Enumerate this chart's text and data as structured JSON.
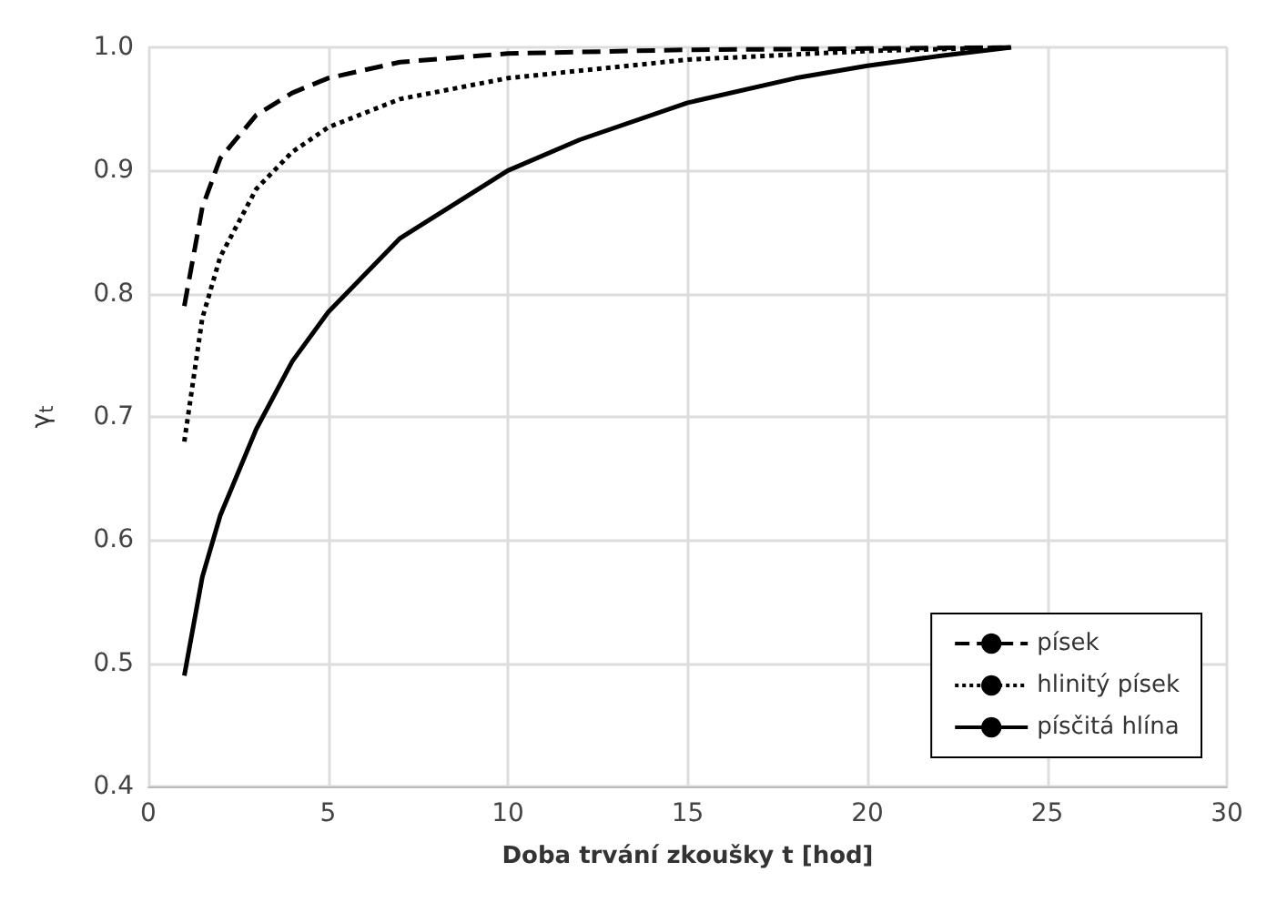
{
  "chart_data": {
    "type": "line",
    "xlabel": "Doba trvání zkoušky t [hod]",
    "ylabel": "γ$_{t}$",
    "xlim": [
      0,
      30
    ],
    "xticks": [
      0,
      5,
      10,
      15,
      20,
      25,
      30
    ],
    "ylim": [
      0.4,
      1.0
    ],
    "yticks": [
      0.4,
      0.5,
      0.6,
      0.7,
      0.8,
      0.9,
      {
        "value": 1.0,
        "label": "1.0"
      }
    ],
    "grid": true,
    "legend": "bottom right",
    "marker": "none",
    "series": [
      {
        "name": "písek",
        "color": "#000000",
        "line_style": "dashed",
        "x": [
          1,
          1.5,
          2,
          3,
          4,
          5,
          7,
          10,
          15,
          20,
          24
        ],
        "values": [
          0.79,
          0.87,
          0.91,
          0.945,
          0.963,
          0.975,
          0.988,
          0.995,
          0.998,
          0.999,
          1.0
        ]
      },
      {
        "name": "hlinitý písek",
        "color": "#000000",
        "line_style": "dotted",
        "x": [
          1,
          1.5,
          2,
          3,
          4,
          5,
          7,
          10,
          15,
          20,
          24
        ],
        "values": [
          0.68,
          0.78,
          0.83,
          0.885,
          0.915,
          0.935,
          0.958,
          0.975,
          0.99,
          0.997,
          1.0
        ]
      },
      {
        "name": "písčitá hlína",
        "color": "#000000",
        "line_style": "solid",
        "x": [
          1,
          1.5,
          2,
          3,
          4,
          5,
          7,
          10,
          12,
          15,
          18,
          20,
          22,
          24
        ],
        "values": [
          0.49,
          0.57,
          0.62,
          0.69,
          0.745,
          0.785,
          0.845,
          0.9,
          0.925,
          0.955,
          0.975,
          0.985,
          0.993,
          1.0
        ]
      }
    ]
  }
}
